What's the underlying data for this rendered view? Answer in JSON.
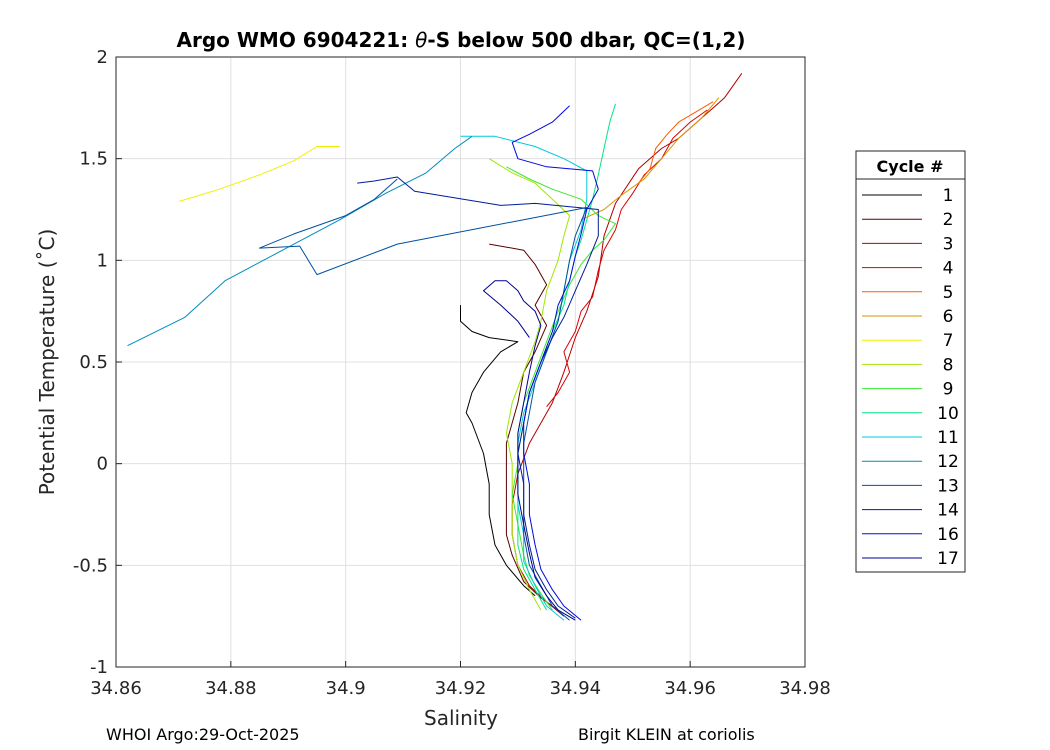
{
  "chart_data": {
    "type": "line",
    "title_prefix": "Argo WMO 6904221: ",
    "title_symbol": "θ",
    "title_suffix": "-S below 500 dbar,  QC=(1,2)",
    "xlabel": "Salinity",
    "ylabel": "Potential Temperature (˚C)",
    "xlim": [
      34.86,
      34.98
    ],
    "ylim": [
      -1,
      2
    ],
    "xticks": [
      34.86,
      34.88,
      34.9,
      34.92,
      34.94,
      34.96,
      34.98
    ],
    "xtick_labels": [
      "34.86",
      "34.88",
      "34.9",
      "34.92",
      "34.94",
      "34.96",
      "34.98"
    ],
    "yticks": [
      -1,
      -0.5,
      0,
      0.5,
      1,
      1.5,
      2
    ],
    "ytick_labels": [
      "-1",
      "-0.5",
      "0",
      "0.5",
      "1",
      "1.5",
      "2"
    ],
    "grid": true,
    "legend_title": "Cycle #",
    "legend_position": "right",
    "series": [
      {
        "name": "1",
        "color": "#000000",
        "points": [
          [
            34.933,
            -0.65
          ],
          [
            34.931,
            -0.6
          ],
          [
            34.928,
            -0.5
          ],
          [
            34.926,
            -0.4
          ],
          [
            34.925,
            -0.25
          ],
          [
            34.925,
            -0.1
          ],
          [
            34.924,
            0.05
          ],
          [
            34.922,
            0.2
          ],
          [
            34.921,
            0.25
          ],
          [
            34.922,
            0.35
          ],
          [
            34.924,
            0.45
          ],
          [
            34.927,
            0.55
          ],
          [
            34.93,
            0.6
          ],
          [
            34.925,
            0.62
          ],
          [
            34.922,
            0.65
          ],
          [
            34.92,
            0.7
          ],
          [
            34.92,
            0.78
          ]
        ]
      },
      {
        "name": "2",
        "color": "#5a0000",
        "points": [
          [
            34.937,
            -0.72
          ],
          [
            34.934,
            -0.66
          ],
          [
            34.931,
            -0.58
          ],
          [
            34.929,
            -0.45
          ],
          [
            34.928,
            -0.35
          ],
          [
            34.928,
            -0.2
          ],
          [
            34.928,
            -0.05
          ],
          [
            34.928,
            0.1
          ],
          [
            34.93,
            0.3
          ],
          [
            34.931,
            0.45
          ],
          [
            34.933,
            0.55
          ],
          [
            34.935,
            0.68
          ],
          [
            34.933,
            0.78
          ],
          [
            34.935,
            0.88
          ],
          [
            34.933,
            0.98
          ],
          [
            34.931,
            1.05
          ],
          [
            34.925,
            1.08
          ]
        ]
      },
      {
        "name": "3",
        "color": "#b40000",
        "points": [
          [
            34.938,
            -0.75
          ],
          [
            34.935,
            -0.68
          ],
          [
            34.932,
            -0.6
          ],
          [
            34.93,
            -0.5
          ],
          [
            34.929,
            -0.35
          ],
          [
            34.929,
            -0.2
          ],
          [
            34.93,
            -0.05
          ],
          [
            34.932,
            0.1
          ],
          [
            34.934,
            0.2
          ],
          [
            34.936,
            0.3
          ],
          [
            34.938,
            0.45
          ],
          [
            34.94,
            0.62
          ],
          [
            34.942,
            0.75
          ],
          [
            34.944,
            0.92
          ],
          [
            34.945,
            1.12
          ],
          [
            34.947,
            1.28
          ],
          [
            34.951,
            1.45
          ],
          [
            34.955,
            1.55
          ],
          [
            34.958,
            1.6
          ],
          [
            34.962,
            1.7
          ],
          [
            34.966,
            1.8
          ],
          [
            34.969,
            1.92
          ]
        ]
      },
      {
        "name": "4",
        "color": "#dc0000",
        "points": [
          [
            34.935,
            0.28
          ],
          [
            34.937,
            0.35
          ],
          [
            34.939,
            0.45
          ],
          [
            34.938,
            0.55
          ],
          [
            34.94,
            0.65
          ],
          [
            34.941,
            0.75
          ],
          [
            34.943,
            0.82
          ],
          [
            34.944,
            0.95
          ],
          [
            34.945,
            1.05
          ],
          [
            34.947,
            1.15
          ],
          [
            34.948,
            1.25
          ],
          [
            34.95,
            1.33
          ],
          [
            34.952,
            1.42
          ],
          [
            34.955,
            1.5
          ],
          [
            34.957,
            1.6
          ],
          [
            34.96,
            1.68
          ],
          [
            34.963,
            1.74
          ]
        ]
      },
      {
        "name": "5",
        "color": "#ff5a00",
        "points": [
          [
            34.951,
            1.38
          ],
          [
            34.953,
            1.45
          ],
          [
            34.954,
            1.55
          ],
          [
            34.956,
            1.62
          ],
          [
            34.958,
            1.68
          ],
          [
            34.961,
            1.73
          ],
          [
            34.964,
            1.78
          ]
        ]
      },
      {
        "name": "6",
        "color": "#dc9600",
        "points": [
          [
            34.941,
            1.2
          ],
          [
            34.945,
            1.25
          ],
          [
            34.948,
            1.32
          ],
          [
            34.952,
            1.4
          ],
          [
            34.955,
            1.5
          ],
          [
            34.958,
            1.6
          ],
          [
            34.962,
            1.7
          ],
          [
            34.965,
            1.8
          ]
        ]
      },
      {
        "name": "7",
        "color": "#f0f000",
        "points": [
          [
            34.871,
            1.29
          ],
          [
            34.878,
            1.35
          ],
          [
            34.885,
            1.42
          ],
          [
            34.891,
            1.49
          ],
          [
            34.895,
            1.56
          ],
          [
            34.899,
            1.56
          ]
        ]
      },
      {
        "name": "8",
        "color": "#a0e600",
        "points": [
          [
            34.934,
            -0.72
          ],
          [
            34.932,
            -0.62
          ],
          [
            34.93,
            -0.5
          ],
          [
            34.929,
            -0.35
          ],
          [
            34.929,
            -0.2
          ],
          [
            34.929,
            0
          ],
          [
            34.928,
            0.15
          ],
          [
            34.929,
            0.3
          ],
          [
            34.931,
            0.45
          ],
          [
            34.933,
            0.6
          ],
          [
            34.934,
            0.7
          ],
          [
            34.935,
            0.85
          ],
          [
            34.937,
            1
          ],
          [
            34.938,
            1.12
          ],
          [
            34.939,
            1.22
          ],
          [
            34.936,
            1.3
          ],
          [
            34.933,
            1.38
          ],
          [
            34.929,
            1.43
          ],
          [
            34.925,
            1.5
          ]
        ]
      },
      {
        "name": "9",
        "color": "#3ce632",
        "points": [
          [
            34.936,
            -0.72
          ],
          [
            34.934,
            -0.64
          ],
          [
            34.932,
            -0.55
          ],
          [
            34.931,
            -0.45
          ],
          [
            34.93,
            -0.3
          ],
          [
            34.929,
            -0.15
          ],
          [
            34.93,
            0
          ],
          [
            34.93,
            0.15
          ],
          [
            34.931,
            0.3
          ],
          [
            34.933,
            0.45
          ],
          [
            34.935,
            0.6
          ],
          [
            34.937,
            0.75
          ],
          [
            34.939,
            0.88
          ],
          [
            34.941,
            0.98
          ],
          [
            34.943,
            1.05
          ],
          [
            34.945,
            1.1
          ],
          [
            34.947,
            1.18
          ],
          [
            34.944,
            1.22
          ],
          [
            34.941,
            1.3
          ],
          [
            34.936,
            1.35
          ],
          [
            34.932,
            1.4
          ],
          [
            34.928,
            1.46
          ]
        ]
      },
      {
        "name": "10",
        "color": "#00e682",
        "points": [
          [
            34.935,
            -0.72
          ],
          [
            34.933,
            -0.62
          ],
          [
            34.931,
            -0.52
          ],
          [
            34.93,
            -0.4
          ],
          [
            34.93,
            -0.25
          ],
          [
            34.93,
            -0.1
          ],
          [
            34.93,
            0.05
          ],
          [
            34.931,
            0.2
          ],
          [
            34.932,
            0.35
          ],
          [
            34.934,
            0.5
          ],
          [
            34.936,
            0.65
          ],
          [
            34.938,
            0.78
          ],
          [
            34.939,
            0.9
          ],
          [
            34.94,
            1.02
          ],
          [
            34.941,
            1.1
          ],
          [
            34.942,
            1.2
          ],
          [
            34.943,
            1.3
          ],
          [
            34.944,
            1.42
          ],
          [
            34.945,
            1.55
          ],
          [
            34.946,
            1.68
          ],
          [
            34.947,
            1.77
          ]
        ]
      },
      {
        "name": "11",
        "color": "#00c8dc",
        "points": [
          [
            34.938,
            -0.77
          ],
          [
            34.935,
            -0.7
          ],
          [
            34.933,
            -0.6
          ],
          [
            34.931,
            -0.48
          ],
          [
            34.931,
            -0.35
          ],
          [
            34.93,
            -0.2
          ],
          [
            34.93,
            -0.05
          ],
          [
            34.93,
            0.1
          ],
          [
            34.931,
            0.25
          ],
          [
            34.933,
            0.4
          ],
          [
            34.935,
            0.55
          ],
          [
            34.937,
            0.7
          ],
          [
            34.938,
            0.85
          ],
          [
            34.939,
            1
          ],
          [
            34.941,
            1.15
          ],
          [
            34.942,
            1.3
          ],
          [
            34.942,
            1.44
          ],
          [
            34.938,
            1.5
          ],
          [
            34.933,
            1.56
          ],
          [
            34.926,
            1.61
          ],
          [
            34.92,
            1.61
          ]
        ]
      },
      {
        "name": "12",
        "color": "#008cbe",
        "points": [
          [
            34.862,
            0.58
          ],
          [
            34.872,
            0.72
          ],
          [
            34.879,
            0.9
          ],
          [
            34.889,
            1.05
          ],
          [
            34.899,
            1.2
          ],
          [
            34.907,
            1.33
          ],
          [
            34.914,
            1.43
          ],
          [
            34.919,
            1.55
          ],
          [
            34.922,
            1.61
          ]
        ]
      },
      {
        "name": "13",
        "color": "#0050a0",
        "points": [
          [
            34.939,
            -0.77
          ],
          [
            34.936,
            -0.7
          ],
          [
            34.934,
            -0.6
          ],
          [
            34.932,
            -0.5
          ],
          [
            34.931,
            -0.35
          ],
          [
            34.931,
            -0.2
          ],
          [
            34.931,
            -0.05
          ],
          [
            34.931,
            0.1
          ],
          [
            34.932,
            0.25
          ],
          [
            34.933,
            0.4
          ],
          [
            34.935,
            0.55
          ],
          [
            34.937,
            0.7
          ],
          [
            34.938,
            0.85
          ],
          [
            34.939,
            1
          ],
          [
            34.94,
            1.12
          ],
          [
            34.942,
            1.26
          ],
          [
            34.931,
            1.2
          ],
          [
            34.92,
            1.14
          ],
          [
            34.909,
            1.08
          ],
          [
            34.895,
            0.93
          ],
          [
            34.892,
            1.07
          ],
          [
            34.885,
            1.06
          ],
          [
            34.891,
            1.13
          ],
          [
            34.9,
            1.22
          ],
          [
            34.905,
            1.3
          ],
          [
            34.909,
            1.4
          ]
        ]
      },
      {
        "name": "14",
        "color": "#001e96",
        "points": [
          [
            34.94,
            -0.76
          ],
          [
            34.937,
            -0.7
          ],
          [
            34.935,
            -0.62
          ],
          [
            34.933,
            -0.52
          ],
          [
            34.932,
            -0.4
          ],
          [
            34.931,
            -0.25
          ],
          [
            34.931,
            -0.1
          ],
          [
            34.93,
            0.05
          ],
          [
            34.931,
            0.2
          ],
          [
            34.932,
            0.35
          ],
          [
            34.934,
            0.5
          ],
          [
            34.936,
            0.62
          ],
          [
            34.938,
            0.72
          ],
          [
            34.94,
            0.85
          ],
          [
            34.942,
            0.98
          ],
          [
            34.944,
            1.12
          ],
          [
            34.944,
            1.25
          ],
          [
            34.933,
            1.28
          ],
          [
            34.927,
            1.27
          ],
          [
            34.912,
            1.34
          ],
          [
            34.909,
            1.41
          ],
          [
            34.905,
            1.39
          ],
          [
            34.902,
            1.38
          ]
        ]
      },
      {
        "name": "16",
        "color": "#000adc",
        "points": [
          [
            34.941,
            -0.77
          ],
          [
            34.938,
            -0.7
          ],
          [
            34.936,
            -0.62
          ],
          [
            34.934,
            -0.52
          ],
          [
            34.933,
            -0.4
          ],
          [
            34.932,
            -0.25
          ],
          [
            34.932,
            -0.1
          ],
          [
            34.931,
            0.05
          ],
          [
            34.931,
            0.2
          ],
          [
            34.932,
            0.35
          ],
          [
            34.934,
            0.5
          ],
          [
            34.936,
            0.65
          ],
          [
            34.937,
            0.78
          ],
          [
            34.939,
            0.9
          ],
          [
            34.94,
            1.02
          ],
          [
            34.941,
            1.13
          ],
          [
            34.942,
            1.25
          ],
          [
            34.944,
            1.35
          ],
          [
            34.943,
            1.44
          ],
          [
            34.935,
            1.46
          ],
          [
            34.93,
            1.5
          ],
          [
            34.929,
            1.58
          ],
          [
            34.932,
            1.62
          ],
          [
            34.936,
            1.68
          ],
          [
            34.939,
            1.76
          ]
        ]
      },
      {
        "name": "17",
        "color": "#00008c",
        "points": [
          [
            34.94,
            -0.77
          ],
          [
            34.937,
            -0.72
          ],
          [
            34.935,
            -0.65
          ],
          [
            34.933,
            -0.56
          ],
          [
            34.932,
            -0.44
          ],
          [
            34.931,
            -0.3
          ],
          [
            34.93,
            -0.15
          ],
          [
            34.93,
            0
          ],
          [
            34.93,
            0.15
          ],
          [
            34.931,
            0.3
          ],
          [
            34.932,
            0.45
          ],
          [
            34.933,
            0.58
          ],
          [
            34.934,
            0.68
          ],
          [
            34.933,
            0.75
          ],
          [
            34.931,
            0.8
          ],
          [
            34.93,
            0.85
          ],
          [
            34.928,
            0.9
          ],
          [
            34.926,
            0.9
          ],
          [
            34.924,
            0.85
          ],
          [
            34.927,
            0.78
          ],
          [
            34.93,
            0.7
          ],
          [
            34.932,
            0.62
          ]
        ]
      }
    ]
  },
  "footer": {
    "left": "WHOI Argo:29-Oct-2025",
    "right": "Birgit KLEIN at coriolis"
  }
}
